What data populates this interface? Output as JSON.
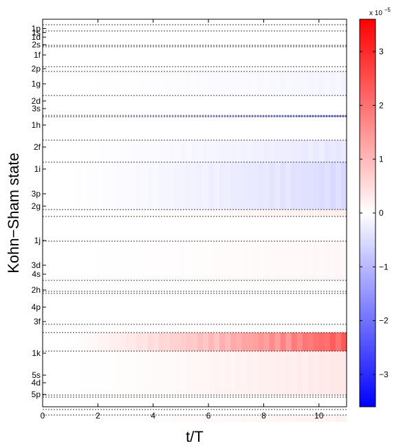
{
  "chart_data": {
    "type": "heatmap",
    "xlabel": "t/T",
    "ylabel": "Kohn−Sham state",
    "x_ticks": [
      "0",
      "2",
      "4",
      "6",
      "8",
      "10"
    ],
    "x_tick_values": [
      0,
      2,
      4,
      6,
      8,
      10
    ],
    "xlim": [
      0,
      11
    ],
    "y_states": [
      "1s",
      "1p",
      "1d",
      "2s",
      "1f",
      "2p",
      "1g",
      "2d",
      "3s",
      "1h",
      "2f",
      "1i",
      "3p",
      "2g",
      "1j",
      "3d",
      "4s",
      "2h",
      "4p",
      "3f",
      "1k",
      "5s",
      "4d",
      "5p"
    ],
    "shell_boundaries": [
      "1s",
      "1p",
      "1d",
      "2s",
      "1f",
      "2p",
      "1g",
      "2d",
      "3s",
      "1h",
      "2f",
      "1i",
      "3p",
      "2g",
      "1j",
      "3d",
      "4s",
      "2h",
      "4p",
      "3f",
      "1k",
      "5s",
      "4d",
      "5p"
    ],
    "colorbar": {
      "exponent_label": "x 10",
      "exponent_power": "−5",
      "ticks": [
        "3",
        "2",
        "1",
        "0",
        "−1",
        "−2",
        "−3"
      ],
      "tick_values": [
        3,
        2,
        1,
        0,
        -1,
        -2,
        -3
      ],
      "range": [
        -3.6,
        3.6
      ],
      "colormap": [
        "#0000ff",
        "#ffffff",
        "#ff0000"
      ]
    },
    "bands": [
      {
        "state": "1d",
        "peak": -0.25
      },
      {
        "state": "2p",
        "peak": -0.15
      },
      {
        "state": "2d",
        "peak": -1.8
      },
      {
        "state": "1h",
        "peak": -0.35
      },
      {
        "state": "2f",
        "peak": -0.55
      },
      {
        "state": "1i",
        "peak": 0.25
      },
      {
        "state": "2g",
        "peak": 0.12
      },
      {
        "state": "4p",
        "peak": 2.4
      },
      {
        "state": "3f",
        "peak": 0.35
      },
      {
        "state": "5p",
        "peak": 0.2
      }
    ]
  }
}
